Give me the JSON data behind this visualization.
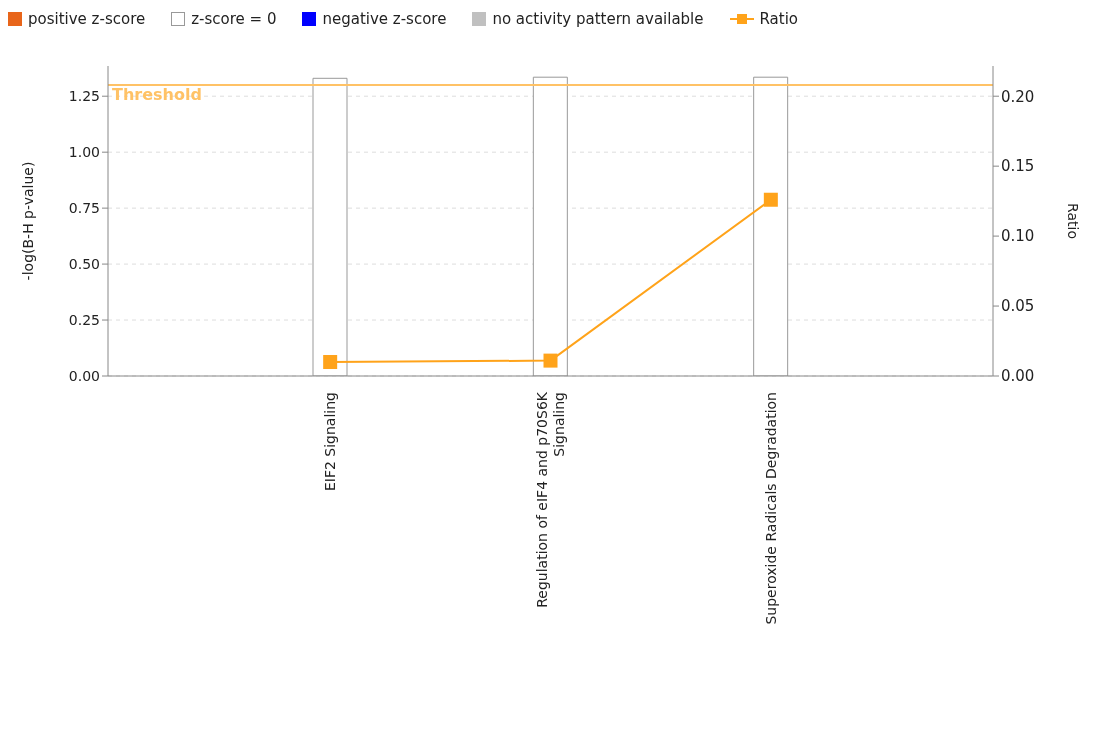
{
  "chart_data": {
    "type": "bar",
    "categories": [
      "EIF2 Signaling",
      "Regulation of eIF4 and p70S6K Signaling",
      "Superoxide Radicals Degradation"
    ],
    "series": [
      {
        "name": "positive z-score",
        "color": "#e8651a",
        "values": [
          null,
          null,
          null
        ]
      },
      {
        "name": "z-score = 0",
        "color": "#ffffff",
        "values": [
          1.33,
          1.335,
          1.335
        ]
      },
      {
        "name": "negative z-score",
        "color": "#0000ff",
        "values": [
          null,
          null,
          null
        ]
      },
      {
        "name": "no activity pattern available",
        "color": "#c0c0c0",
        "values": [
          null,
          null,
          null
        ]
      },
      {
        "name": "Ratio",
        "type": "line",
        "axis": "y2",
        "color": "#ffa31a",
        "values": [
          0.01,
          0.011,
          0.126
        ]
      }
    ],
    "ylabel": "-log(B-H p-value)",
    "y2label": "Ratio",
    "ylim": [
      0,
      1.385
    ],
    "yticks": [
      {
        "value": 0,
        "label": "0.00"
      },
      {
        "value": 0.25,
        "label": "0.25"
      },
      {
        "value": 0.5,
        "label": "0.50"
      },
      {
        "value": 0.75,
        "label": "0.75"
      },
      {
        "value": 1,
        "label": "1.00"
      },
      {
        "value": 1.25,
        "label": "1.25"
      }
    ],
    "y2lim": [
      0,
      0.2216
    ],
    "y2ticks": [
      {
        "value": 0,
        "label": "0.00"
      },
      {
        "value": 0.05,
        "label": "0.05"
      },
      {
        "value": 0.1,
        "label": "0.10"
      },
      {
        "value": 0.15,
        "label": "0.15"
      },
      {
        "value": 0.2,
        "label": "0.20"
      }
    ],
    "ref_lines": [
      {
        "axis": "y",
        "value": 1.3,
        "label": "Threshold",
        "color": "#ffc266"
      }
    ],
    "grid": "y",
    "legend": "top",
    "marker": "square",
    "line_style": "solid"
  }
}
